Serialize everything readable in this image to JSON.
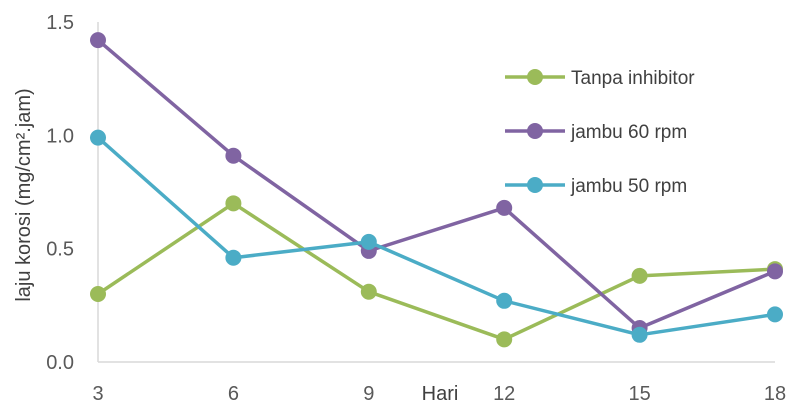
{
  "chart_data": {
    "type": "line",
    "x": [
      3,
      6,
      9,
      12,
      15,
      18
    ],
    "xlabel": "Hari",
    "ylabel": "laju korosi (mg/cm².jam)",
    "xticks": [
      "3",
      "6",
      "9",
      "12",
      "15",
      "18"
    ],
    "yticks": [
      "0.0",
      "0.5",
      "1.0",
      "1.5"
    ],
    "ylim": [
      0,
      1.5
    ],
    "grid": false,
    "legend_position": "right",
    "series": [
      {
        "name": "Tanpa inhibitor",
        "color": "#9bbb59",
        "values": [
          0.3,
          0.7,
          0.31,
          0.1,
          0.38,
          0.41
        ]
      },
      {
        "name": "jambu 60 rpm",
        "color": "#8064a2",
        "values": [
          1.42,
          0.91,
          0.49,
          0.68,
          0.15,
          0.4
        ]
      },
      {
        "name": "jambu 50 rpm",
        "color": "#4bacc6",
        "values": [
          0.99,
          0.46,
          0.53,
          0.27,
          0.12,
          0.21
        ]
      }
    ]
  }
}
